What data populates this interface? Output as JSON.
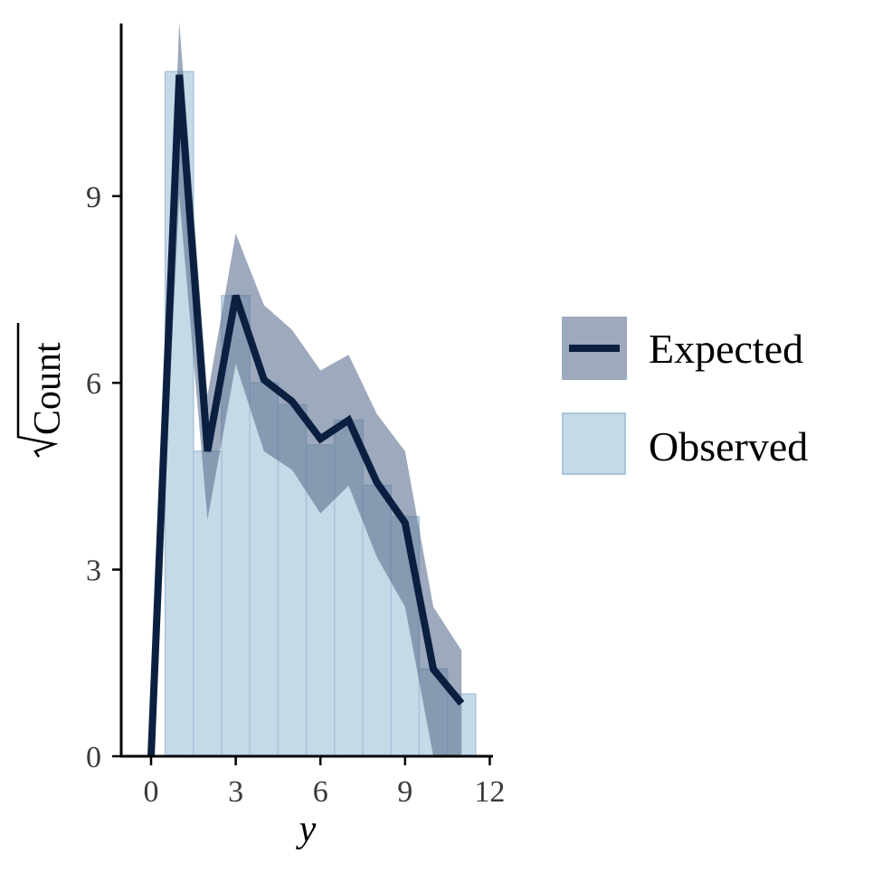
{
  "chart_data": {
    "type": "bar",
    "xlabel": "y",
    "ylabel": "Count",
    "xlim": [
      -1.1,
      12
    ],
    "ylim": [
      0,
      11.7
    ],
    "x_ticks": [
      "0",
      "3",
      "6",
      "9",
      "12"
    ],
    "y_ticks": [
      "0",
      "3",
      "6",
      "9"
    ],
    "x_tick_values": [
      0,
      3,
      6,
      9,
      12
    ],
    "y_tick_values": [
      0,
      3,
      6,
      9
    ],
    "grid": false,
    "legend_position": "right",
    "observed": {
      "name": "Observed",
      "x": [
        1,
        2,
        3,
        4,
        5,
        6,
        7,
        8,
        9,
        10,
        11
      ],
      "values": [
        11.0,
        4.9,
        7.4,
        6.0,
        5.65,
        5.0,
        5.4,
        4.35,
        3.85,
        1.4,
        1.0
      ]
    },
    "expected": {
      "name": "Expected",
      "x": [
        0,
        1,
        2,
        3,
        4,
        5,
        6,
        7,
        8,
        9,
        10,
        11
      ],
      "values": [
        0,
        10.95,
        4.9,
        7.4,
        6.05,
        5.7,
        5.1,
        5.4,
        4.4,
        3.75,
        1.4,
        0.85
      ],
      "lower": [
        0,
        9.0,
        3.8,
        6.3,
        4.9,
        4.6,
        3.9,
        4.35,
        3.2,
        2.4,
        0.0,
        0.0
      ],
      "upper": [
        0,
        11.8,
        5.8,
        8.4,
        7.25,
        6.85,
        6.2,
        6.45,
        5.5,
        4.9,
        2.4,
        1.7
      ]
    }
  },
  "colors": {
    "observed_fill": "#c6d9e7",
    "observed_edge": "#a8c4d9",
    "expected_band": "#5b708f",
    "expected_line": "#0b1f40",
    "axis": "#000000"
  }
}
